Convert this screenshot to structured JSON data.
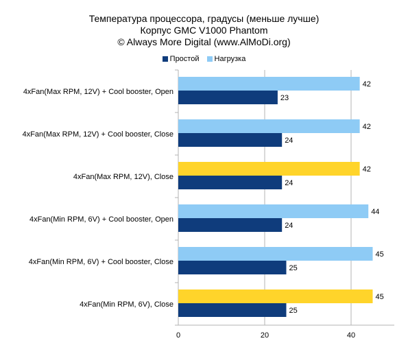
{
  "chart_data": {
    "type": "bar",
    "orientation": "horizontal",
    "title": [
      "Температура процессора, градусы (меньше лучше)",
      "Корпус GMC V1000 Phantom",
      "© Always More Digital (www.AlMoDi.org)"
    ],
    "categories": [
      "4xFan(Max RPM, 12V) + Cool booster, Open",
      "4xFan(Max RPM, 12V) + Cool booster, Close",
      "4xFan(Max RPM, 12V), Close",
      "4xFan(Min RPM, 6V) + Cool booster, Open",
      "4xFan(Min RPM, 6V) + Cool booster, Close",
      "4xFan(Min RPM, 6V), Close"
    ],
    "series": [
      {
        "name": "Простой",
        "color": "#0f3c7c",
        "values": [
          23,
          24,
          24,
          24,
          25,
          25
        ]
      },
      {
        "name": "Нагрузка",
        "color": "#8ecbf5",
        "highlight_color": "#ffd42a",
        "highlight_indices": [
          2,
          5
        ],
        "values": [
          42,
          42,
          42,
          44,
          45,
          45
        ]
      }
    ],
    "xlim": [
      0,
      50
    ],
    "xticks": [
      0,
      20,
      40
    ],
    "legend_position": "top",
    "grid": "vertical"
  }
}
